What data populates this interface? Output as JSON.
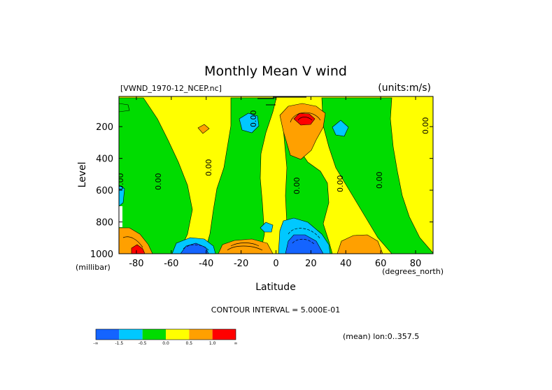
{
  "chart_data": {
    "type": "heatmap",
    "title": "Monthly Mean V wind",
    "dataset_label": "[VWND_1970-12_NCEP.nc]",
    "units_label": "(units:m/s)",
    "xlabel": "Latitude",
    "ylabel": "Level",
    "x_units_label": "(degrees_north)",
    "y_units_label": "(millibar)",
    "xlim": [
      -90,
      90
    ],
    "ylim": [
      1000,
      10
    ],
    "x_ticks": [
      "-80",
      "-60",
      "-40",
      "-20",
      "0",
      "20",
      "40",
      "60",
      "80"
    ],
    "y_ticks": [
      "200",
      "400",
      "600",
      "800",
      "1000"
    ],
    "contour_interval_label": "CONTOUR INTERVAL = 5.000E-01",
    "mean_label": "(mean) lon:0..357.5",
    "contour_label": "0.00",
    "levels": [
      -1.5,
      -0.5,
      0.0,
      0.5,
      1.0
    ],
    "colorbar": {
      "colors": [
        "#1464ff",
        "#00c8ff",
        "#00dc00",
        "#ffff00",
        "#ffa000",
        "#ff0000"
      ],
      "tick_labels": [
        "-∞",
        "-1.5",
        "-0.5",
        "0.0",
        "0.5",
        "1.0",
        "∞"
      ]
    },
    "features": [
      {
        "name": "south-pole-surface-max",
        "lat": -85,
        "level": 980,
        "value": 2.0
      },
      {
        "name": "sh-midlat-surface-min",
        "lat": -45,
        "level": 980,
        "value": -1.5
      },
      {
        "name": "sh-subtropic-surface-max",
        "lat": -15,
        "level": 980,
        "value": 1.5
      },
      {
        "name": "nh-tropic-surface-min",
        "lat": 15,
        "level": 960,
        "value": -2.5
      },
      {
        "name": "nh-midlat-surface-max",
        "lat": 50,
        "level": 980,
        "value": 1.0
      },
      {
        "name": "nh-tropic-upper-max",
        "lat": 15,
        "level": 150,
        "value": 2.5
      },
      {
        "name": "sh-tropic-upper-min",
        "lat": -20,
        "level": 160,
        "value": -1.0
      },
      {
        "name": "nh-subtropic-upper-min",
        "lat": 38,
        "level": 190,
        "value": -0.8
      },
      {
        "name": "sh-midlat-upper-max",
        "lat": -43,
        "level": 200,
        "value": 0.8
      },
      {
        "name": "sh-low-level-min",
        "lat": -5,
        "level": 830,
        "value": -0.7
      },
      {
        "name": "nh-tropic-low-level-min",
        "lat": 10,
        "level": 830,
        "value": -0.8
      }
    ]
  }
}
